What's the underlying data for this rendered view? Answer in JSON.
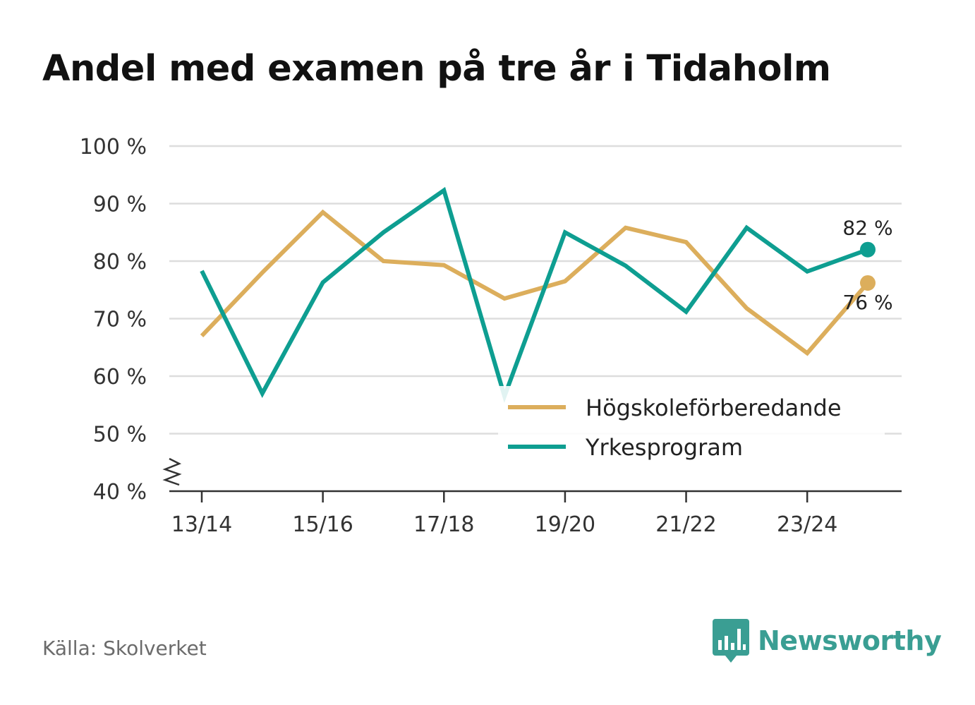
{
  "title": "Andel med examen på tre år i Tidaholm",
  "source": "Källa: Skolverket",
  "brand": {
    "name": "Newsworthy",
    "color": "#3a9e93",
    "icon": "bar-chart-speech-bubble-icon"
  },
  "colors": {
    "hogskole": "#dcae5c",
    "yrkes": "#0e9e91",
    "grid": "#dddddd",
    "axis": "#333333"
  },
  "chart_data": {
    "type": "line",
    "title": "Andel med examen på tre år i Tidaholm",
    "xlabel": "",
    "ylabel": "",
    "x": [
      "13/14",
      "14/15",
      "15/16",
      "16/17",
      "17/18",
      "18/19",
      "19/20",
      "20/21",
      "21/22",
      "22/23",
      "23/24",
      "24/25"
    ],
    "x_tick_labels": [
      "13/14",
      "15/16",
      "17/18",
      "19/20",
      "21/22",
      "23/24"
    ],
    "y_ticks": [
      40,
      50,
      60,
      70,
      80,
      90,
      100
    ],
    "y_tick_labels": [
      "40 %",
      "50 %",
      "60 %",
      "70 %",
      "80 %",
      "90 %",
      "100 %"
    ],
    "ylim": [
      40,
      100
    ],
    "y_axis_break": true,
    "grid": true,
    "legend_position": "bottom-right",
    "series": [
      {
        "name": "Högskoleförberedande",
        "color": "#dcae5c",
        "values": [
          67,
          78,
          88.5,
          80,
          79.3,
          73.5,
          76.5,
          85.8,
          83.3,
          71.8,
          64,
          76.2
        ],
        "end_label": "76 %"
      },
      {
        "name": "Yrkesprogram",
        "color": "#0e9e91",
        "values": [
          78.3,
          57,
          76.3,
          85,
          92.3,
          56.5,
          85,
          79.2,
          71.2,
          85.8,
          78.2,
          82
        ],
        "end_label": "82 %"
      }
    ]
  }
}
